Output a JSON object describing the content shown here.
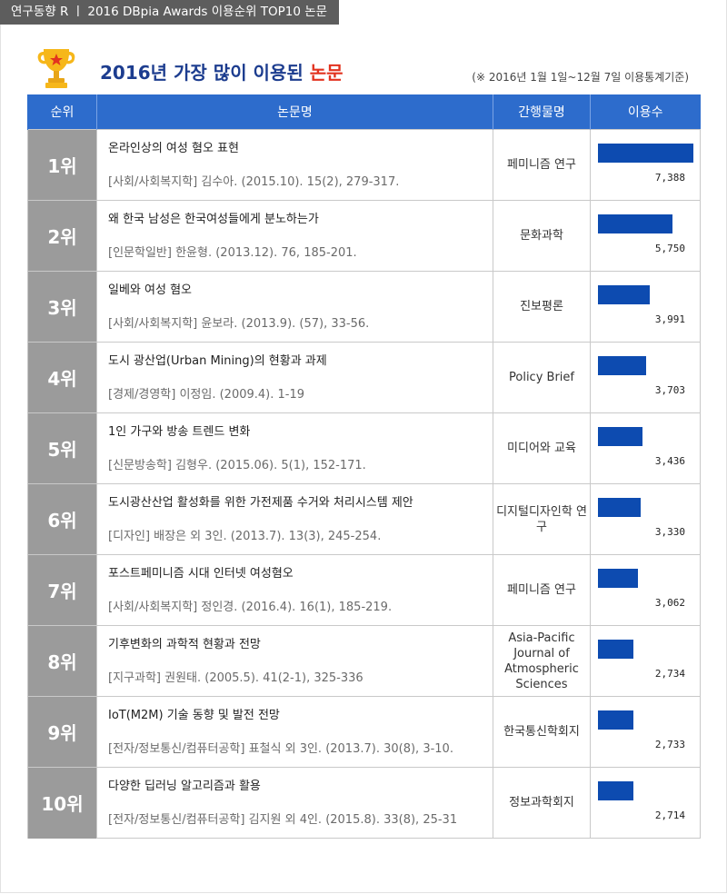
{
  "top_tag": "연구동향 R  ㅣ  2016 DBpia Awards 이용순위 TOP10 논문",
  "header": {
    "title_main": "2016년 가장 많이 이용된 ",
    "title_highlight": "논문",
    "note": "(※ 2016년 1월 1일~12월 7일 이용통계기준)"
  },
  "table": {
    "headers": {
      "rank": "순위",
      "paper": "논문명",
      "journal": "간행물명",
      "usage": "이용수"
    },
    "rows": [
      {
        "rank": "1위",
        "title": "온라인상의 여성 혐오 표현",
        "citation": "[사회/사회복지학] 김수아. (2015.10). 15(2), 279-317.",
        "journal": "페미니즘 연구",
        "count": "7,388"
      },
      {
        "rank": "2위",
        "title": "왜 한국 남성은 한국여성들에게 분노하는가",
        "citation": "[인문학일반] 한윤형. (2013.12). 76, 185-201.",
        "journal": "문화과학",
        "count": "5,750"
      },
      {
        "rank": "3위",
        "title": "일베와 여성 혐오",
        "citation": "[사회/사회복지학] 윤보라. (2013.9). (57), 33-56.",
        "journal": "진보평론",
        "count": "3,991"
      },
      {
        "rank": "4위",
        "title": "도시 광산업(Urban Mining)의 현황과 과제",
        "citation": "[경제/경영학] 이정임. (2009.4). 1-19",
        "journal": "Policy Brief",
        "count": "3,703"
      },
      {
        "rank": "5위",
        "title": "1인 가구와 방송 트렌드 변화",
        "citation": "[신문방송학] 김형우. (2015.06). 5(1), 152-171.",
        "journal": "미디어와 교육",
        "count": "3,436"
      },
      {
        "rank": "6위",
        "title": "도시광산산업 활성화를 위한 가전제품 수거와 처리시스템 제안",
        "citation": "[디자인] 배장은 외 3인. (2013.7). 13(3), 245-254.",
        "journal": "디지털디자인학 연구",
        "count": "3,330"
      },
      {
        "rank": "7위",
        "title": "포스트페미니즘 시대 인터넷 여성혐오",
        "citation": "[사회/사회복지학] 정인경. (2016.4). 16(1), 185-219.",
        "journal": "페미니즘 연구",
        "count": "3,062"
      },
      {
        "rank": "8위",
        "title": "기후변화의 과학적 현황과 전망",
        "citation": "[지구과학] 권원태. (2005.5). 41(2-1), 325-336",
        "journal": "Asia-Pacific Journal of Atmospheric Sciences",
        "count": "2,734"
      },
      {
        "rank": "9위",
        "title": "IoT(M2M) 기술 동향 및 발전 전망",
        "citation": "[전자/정보통신/컴퓨터공학] 표철식 외 3인. (2013.7). 30(8), 3-10.",
        "journal": "한국통신학회지",
        "count": "2,733"
      },
      {
        "rank": "10위",
        "title": "다양한 딥러닝 알고리즘과 활용",
        "citation": "[전자/정보통신/컴퓨터공학] 김지원 외 4인. (2015.8). 33(8), 25-31",
        "journal": "정보과학회지",
        "count": "2,714"
      }
    ]
  },
  "chart_data": {
    "type": "bar",
    "categories": [
      "1위",
      "2위",
      "3위",
      "4위",
      "5위",
      "6위",
      "7위",
      "8위",
      "9위",
      "10위"
    ],
    "values": [
      7388,
      5750,
      3991,
      3703,
      3436,
      3330,
      3062,
      2734,
      2733,
      2714
    ],
    "title": "2016년 가장 많이 이용된 논문",
    "ylabel": "이용수",
    "orientation": "horizontal"
  },
  "colors": {
    "header_bg": "#2d6ccc",
    "bar": "#0d4bb0",
    "rank_bg": "#9b9b9b",
    "title_blue": "#1d3d8f",
    "title_red": "#e2331f"
  },
  "icons": {
    "trophy": "trophy-icon"
  }
}
